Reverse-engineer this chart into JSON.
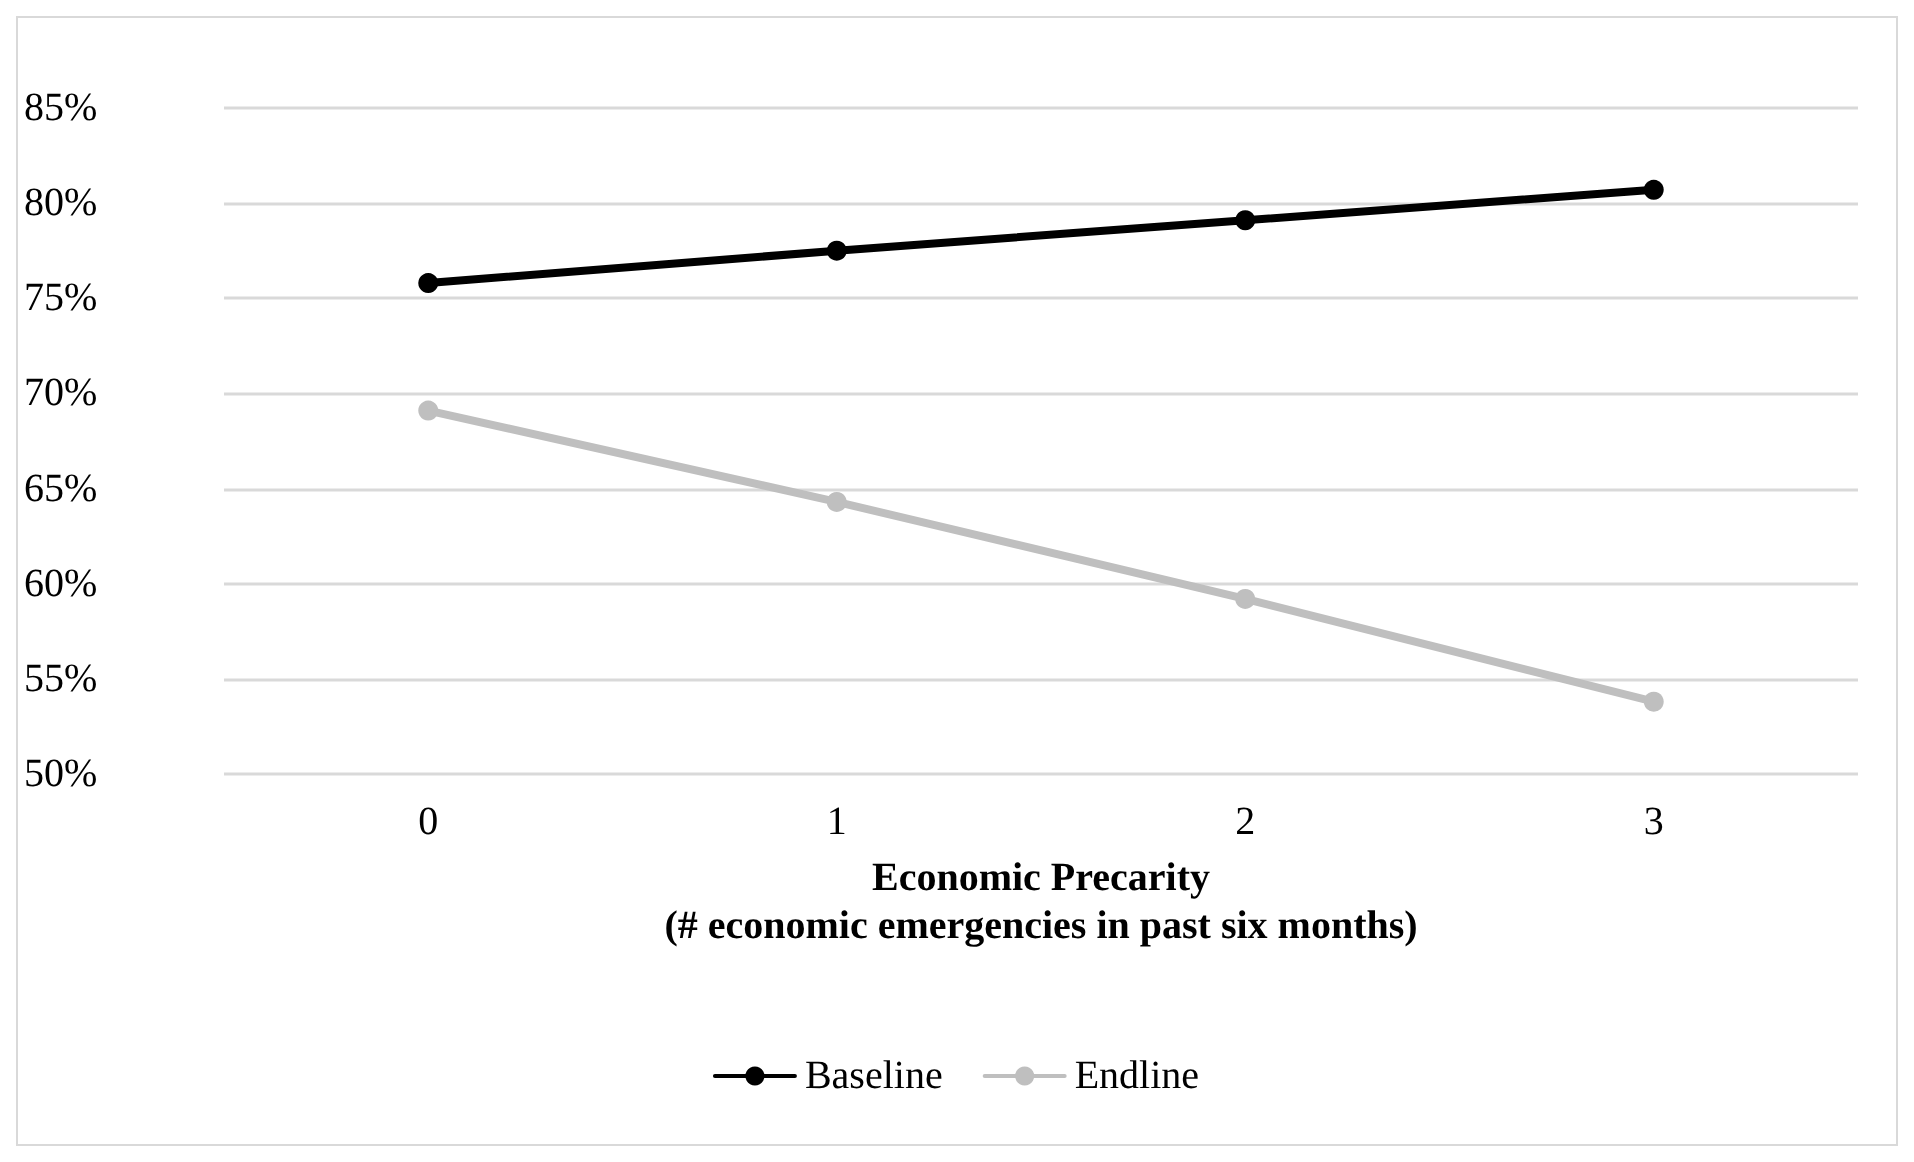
{
  "chart_data": {
    "type": "line",
    "xlabel": "Economic Precarity\n(# economic emergencies in past six months)",
    "categories": [
      "0",
      "1",
      "2",
      "3"
    ],
    "series": [
      {
        "name": "Baseline",
        "color": "#000000",
        "values": [
          75.8,
          77.5,
          79.1,
          80.7
        ]
      },
      {
        "name": "Endline",
        "color": "#bfbfbf",
        "values": [
          69.1,
          64.3,
          59.2,
          53.8
        ]
      }
    ],
    "ylim": [
      50,
      85
    ],
    "yticks": [
      {
        "value": 50,
        "label": "50%"
      },
      {
        "value": 55,
        "label": "55%"
      },
      {
        "value": 60,
        "label": "60%"
      },
      {
        "value": 65,
        "label": "65%"
      },
      {
        "value": 70,
        "label": "70%"
      },
      {
        "value": 75,
        "label": "75%"
      },
      {
        "value": 80,
        "label": "80%"
      },
      {
        "value": 85,
        "label": "85%"
      }
    ],
    "grid": "y",
    "legend": "bottom",
    "marker": "circle",
    "line_style": "solid"
  }
}
